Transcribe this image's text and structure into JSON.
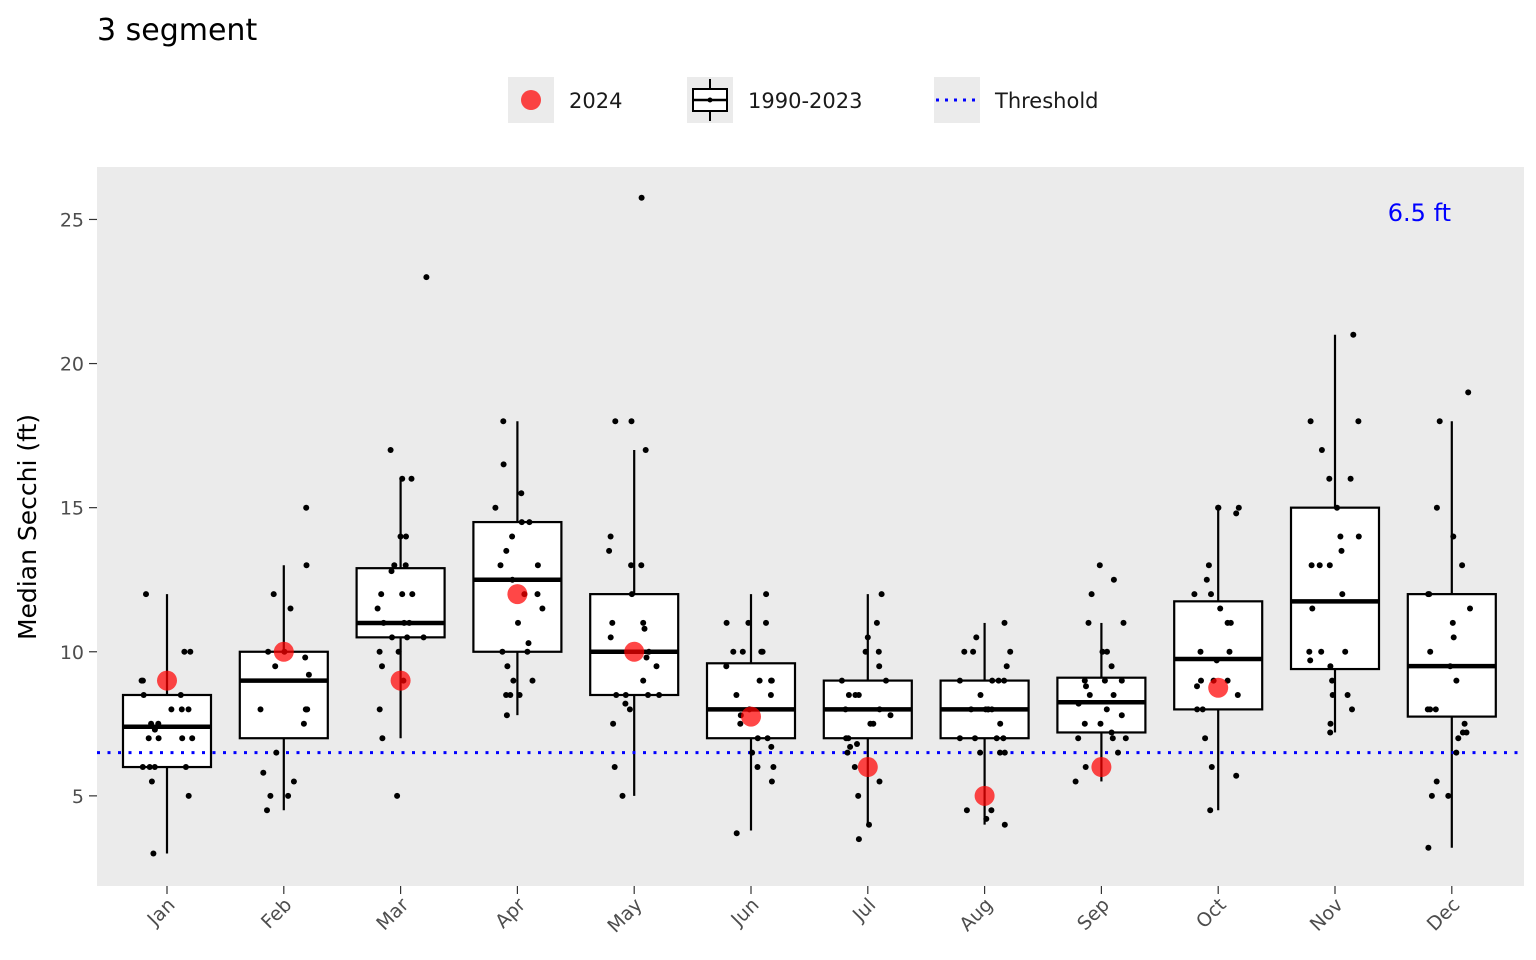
{
  "chart_data": {
    "type": "box",
    "title": "3 segment",
    "xlabel": "",
    "ylabel": "Median Secchi (ft)",
    "ylim": [
      1.9,
      26.8
    ],
    "y_ticks": [
      5,
      10,
      15,
      20,
      25
    ],
    "categories": [
      "Jan",
      "Feb",
      "Mar",
      "Apr",
      "May",
      "Jun",
      "Jul",
      "Aug",
      "Sep",
      "Oct",
      "Nov",
      "Dec"
    ],
    "grid": false,
    "legend": {
      "placement": "top",
      "items": [
        {
          "label": "2024",
          "kind": "point"
        },
        {
          "label": "1990-2023",
          "kind": "box"
        },
        {
          "label": "Threshold",
          "kind": "dotted-line"
        }
      ]
    },
    "threshold": {
      "value": 6.5,
      "label": "6.5 ft",
      "color": "#0000ff"
    },
    "colors": {
      "panel": "#ebebeb",
      "current_year": "#ff0000",
      "threshold": "#0000ff"
    },
    "boxes": [
      {
        "month": "Jan",
        "min": 3.0,
        "q1": 6.0,
        "median": 7.4,
        "q3": 8.5,
        "max": 12.0
      },
      {
        "month": "Feb",
        "min": 4.5,
        "q1": 7.0,
        "median": 9.0,
        "q3": 10.0,
        "max": 13.0
      },
      {
        "month": "Mar",
        "min": 7.0,
        "q1": 10.5,
        "median": 11.0,
        "q3": 12.9,
        "max": 16.0
      },
      {
        "month": "Apr",
        "min": 7.8,
        "q1": 10.0,
        "median": 12.5,
        "q3": 14.5,
        "max": 18.0
      },
      {
        "month": "May",
        "min": 5.0,
        "q1": 8.5,
        "median": 10.0,
        "q3": 12.0,
        "max": 17.0
      },
      {
        "month": "Jun",
        "min": 3.8,
        "q1": 7.0,
        "median": 8.0,
        "q3": 9.6,
        "max": 12.0
      },
      {
        "month": "Jul",
        "min": 4.0,
        "q1": 7.0,
        "median": 8.0,
        "q3": 9.0,
        "max": 12.0
      },
      {
        "month": "Aug",
        "min": 4.0,
        "q1": 7.0,
        "median": 8.0,
        "q3": 9.0,
        "max": 11.0
      },
      {
        "month": "Sep",
        "min": 5.5,
        "q1": 7.2,
        "median": 8.25,
        "q3": 9.1,
        "max": 11.0
      },
      {
        "month": "Oct",
        "min": 4.5,
        "q1": 8.0,
        "median": 9.75,
        "q3": 11.75,
        "max": 15.0
      },
      {
        "month": "Nov",
        "min": 7.2,
        "q1": 9.4,
        "median": 11.75,
        "q3": 15.0,
        "max": 21.0
      },
      {
        "month": "Dec",
        "min": 3.2,
        "q1": 7.75,
        "median": 9.5,
        "q3": 12.0,
        "max": 18.0
      }
    ],
    "outliers": [
      {
        "month": "Mar",
        "value": 23.0
      },
      {
        "month": "Mar",
        "value": 5.0
      },
      {
        "month": "May",
        "value": 25.75
      },
      {
        "month": "Nov",
        "value": 7.2
      },
      {
        "month": "Dec",
        "value": 19.0
      }
    ],
    "observations": [
      {
        "month": "Jan",
        "values": [
          12,
          10,
          10,
          9,
          9,
          8.5,
          8.5,
          8,
          8,
          8,
          7.5,
          7.5,
          7.3,
          7,
          7,
          7,
          7,
          6,
          6,
          6,
          6,
          5.5,
          5,
          3
        ]
      },
      {
        "month": "Feb",
        "values": [
          15,
          13,
          12,
          11.5,
          10,
          10,
          9.8,
          9.5,
          9.2,
          8,
          8,
          8,
          8,
          7.5,
          6.5,
          5.8,
          5.5,
          5,
          5,
          4.5
        ]
      },
      {
        "month": "Mar",
        "values": [
          23,
          17,
          16,
          16,
          14,
          14,
          13,
          13,
          12.8,
          12,
          12,
          12,
          11.5,
          11,
          11,
          11,
          10.5,
          10.5,
          10.5,
          10,
          10,
          9.5,
          9,
          8,
          7,
          5
        ]
      },
      {
        "month": "Apr",
        "values": [
          18,
          16.5,
          15.5,
          15,
          14.5,
          14.5,
          14,
          13.5,
          13,
          13,
          12.5,
          12,
          12,
          11.5,
          11,
          10.3,
          10,
          10,
          9.5,
          9,
          9,
          8.5,
          8.5,
          8.5,
          7.8
        ]
      },
      {
        "month": "May",
        "values": [
          25.75,
          18,
          18,
          17,
          14,
          13.5,
          13,
          13,
          12,
          11,
          11,
          10.8,
          10.5,
          10,
          9.8,
          9.5,
          9,
          8.5,
          8.5,
          8.5,
          8.5,
          8.2,
          8,
          7.5,
          6,
          5
        ]
      },
      {
        "month": "Jun",
        "values": [
          12,
          11,
          11,
          11,
          10,
          10,
          10,
          10,
          9.5,
          9,
          9,
          9,
          8.5,
          8.5,
          8,
          7.8,
          7.5,
          7,
          7,
          6.7,
          6.5,
          6,
          6,
          5.5,
          3.7
        ]
      },
      {
        "month": "Jul",
        "values": [
          12,
          11,
          10.5,
          10,
          10,
          9.5,
          9,
          9,
          8.5,
          8.5,
          8.5,
          8,
          8,
          7.8,
          7.5,
          7.5,
          7,
          7,
          6.8,
          6.7,
          6.5,
          6,
          5.5,
          5,
          4,
          3.5
        ]
      },
      {
        "month": "Aug",
        "values": [
          11,
          10.5,
          10,
          10,
          10,
          9.5,
          9,
          9,
          9,
          9,
          8.5,
          8,
          8,
          8,
          8,
          8,
          7.5,
          7,
          7,
          7,
          7,
          6.5,
          6.5,
          6.5,
          4.5,
          4.5,
          4.2,
          4
        ]
      },
      {
        "month": "Sep",
        "values": [
          13,
          12.5,
          12,
          11,
          11,
          10,
          10,
          9.5,
          9,
          9,
          9,
          8.8,
          8.5,
          8.5,
          8.2,
          8,
          7.8,
          7.5,
          7.5,
          7.2,
          7,
          7,
          7,
          6.5,
          6,
          5.5
        ]
      },
      {
        "month": "Oct",
        "values": [
          15,
          15,
          15,
          14.8,
          13,
          12.5,
          12,
          12,
          11.5,
          11,
          11,
          10,
          10,
          9.7,
          9,
          9,
          9,
          8.8,
          8.5,
          8,
          8,
          7,
          6,
          5.7,
          4.5
        ]
      },
      {
        "month": "Nov",
        "values": [
          21,
          18,
          18,
          17,
          16,
          16,
          15,
          14,
          14,
          13.5,
          13,
          13,
          13,
          12,
          11.5,
          10,
          10,
          10,
          9.7,
          9.5,
          9,
          8.5,
          8.5,
          8,
          7.5,
          7.2
        ]
      },
      {
        "month": "Dec",
        "values": [
          19,
          18,
          15,
          14,
          13,
          12,
          12,
          11.5,
          11,
          10.5,
          10,
          9.5,
          9,
          8,
          8,
          8,
          7.5,
          7.2,
          7.2,
          7,
          6.5,
          5.5,
          5,
          5,
          3.2
        ]
      }
    ],
    "series": [
      {
        "name": "2024",
        "values": [
          9,
          10,
          9,
          12,
          10,
          7.75,
          6,
          5,
          6,
          8.75,
          null,
          null
        ]
      }
    ]
  }
}
